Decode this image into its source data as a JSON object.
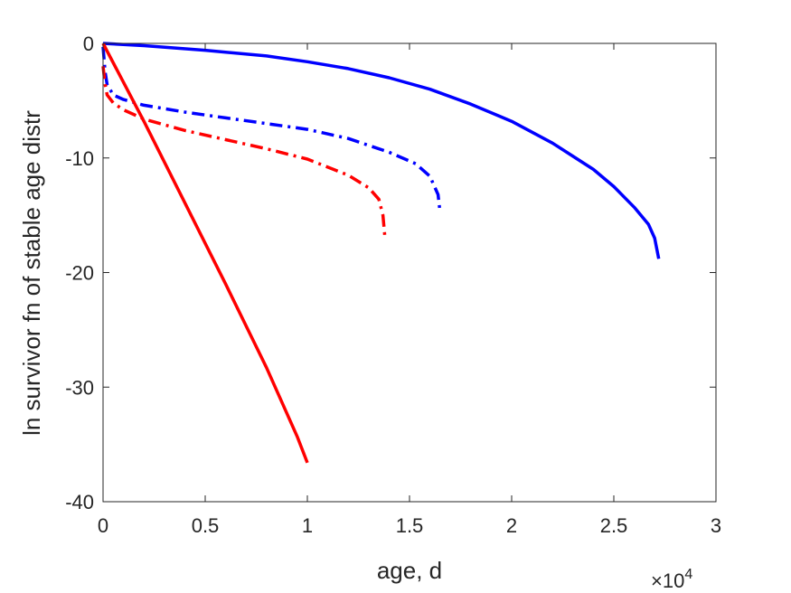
{
  "chart_data": {
    "type": "line",
    "title": "",
    "xlabel": "age, d",
    "ylabel": "ln survivor fn of stable age distr",
    "x_exponent_label": {
      "base": "×10",
      "exponent": "4"
    },
    "xlim": [
      0,
      30000
    ],
    "ylim": [
      -40,
      0
    ],
    "xticks": [
      0,
      5000,
      10000,
      15000,
      20000,
      25000,
      30000
    ],
    "xtick_labels": [
      "0",
      "0.5",
      "1",
      "1.5",
      "2",
      "2.5",
      "3"
    ],
    "yticks": [
      0,
      -10,
      -20,
      -30,
      -40
    ],
    "ytick_labels": [
      "0",
      "-10",
      "-20",
      "-30",
      "-40"
    ],
    "grid": false,
    "legend": "none",
    "series": [
      {
        "color": "#0000ff",
        "style": "solid",
        "points": [
          [
            0,
            0
          ],
          [
            2000,
            -0.2
          ],
          [
            5000,
            -0.6
          ],
          [
            8000,
            -1.1
          ],
          [
            10000,
            -1.6
          ],
          [
            12000,
            -2.2
          ],
          [
            14000,
            -3.0
          ],
          [
            16000,
            -4.0
          ],
          [
            18000,
            -5.3
          ],
          [
            20000,
            -6.8
          ],
          [
            22000,
            -8.7
          ],
          [
            24000,
            -11.0
          ],
          [
            25000,
            -12.5
          ],
          [
            26000,
            -14.3
          ],
          [
            26700,
            -15.8
          ],
          [
            27000,
            -17.0
          ],
          [
            27200,
            -18.8
          ]
        ]
      },
      {
        "color": "#0000ff",
        "style": "dashdot",
        "points": [
          [
            0,
            -0.3
          ],
          [
            100,
            -2.5
          ],
          [
            200,
            -3.6
          ],
          [
            500,
            -4.5
          ],
          [
            1000,
            -4.9
          ],
          [
            2000,
            -5.4
          ],
          [
            4000,
            -6.0
          ],
          [
            6000,
            -6.5
          ],
          [
            8000,
            -7.0
          ],
          [
            10000,
            -7.5
          ],
          [
            12000,
            -8.3
          ],
          [
            14000,
            -9.5
          ],
          [
            15300,
            -10.5
          ],
          [
            16000,
            -11.6
          ],
          [
            16400,
            -13.2
          ],
          [
            16500,
            -14.8
          ]
        ]
      },
      {
        "color": "#ff0000",
        "style": "solid",
        "points": [
          [
            0,
            0
          ],
          [
            2000,
            -6.8
          ],
          [
            4000,
            -13.9
          ],
          [
            6000,
            -21.0
          ],
          [
            8000,
            -28.3
          ],
          [
            9500,
            -34.3
          ],
          [
            10000,
            -36.6
          ]
        ]
      },
      {
        "color": "#ff0000",
        "style": "dashdot",
        "points": [
          [
            0,
            -2.0
          ],
          [
            100,
            -3.6
          ],
          [
            200,
            -4.5
          ],
          [
            500,
            -5.2
          ],
          [
            1000,
            -5.8
          ],
          [
            2000,
            -6.6
          ],
          [
            4000,
            -7.6
          ],
          [
            6000,
            -8.4
          ],
          [
            8000,
            -9.2
          ],
          [
            10000,
            -10.1
          ],
          [
            12000,
            -11.5
          ],
          [
            13000,
            -12.6
          ],
          [
            13500,
            -13.6
          ],
          [
            13700,
            -15.0
          ],
          [
            13800,
            -17.0
          ]
        ]
      }
    ]
  }
}
